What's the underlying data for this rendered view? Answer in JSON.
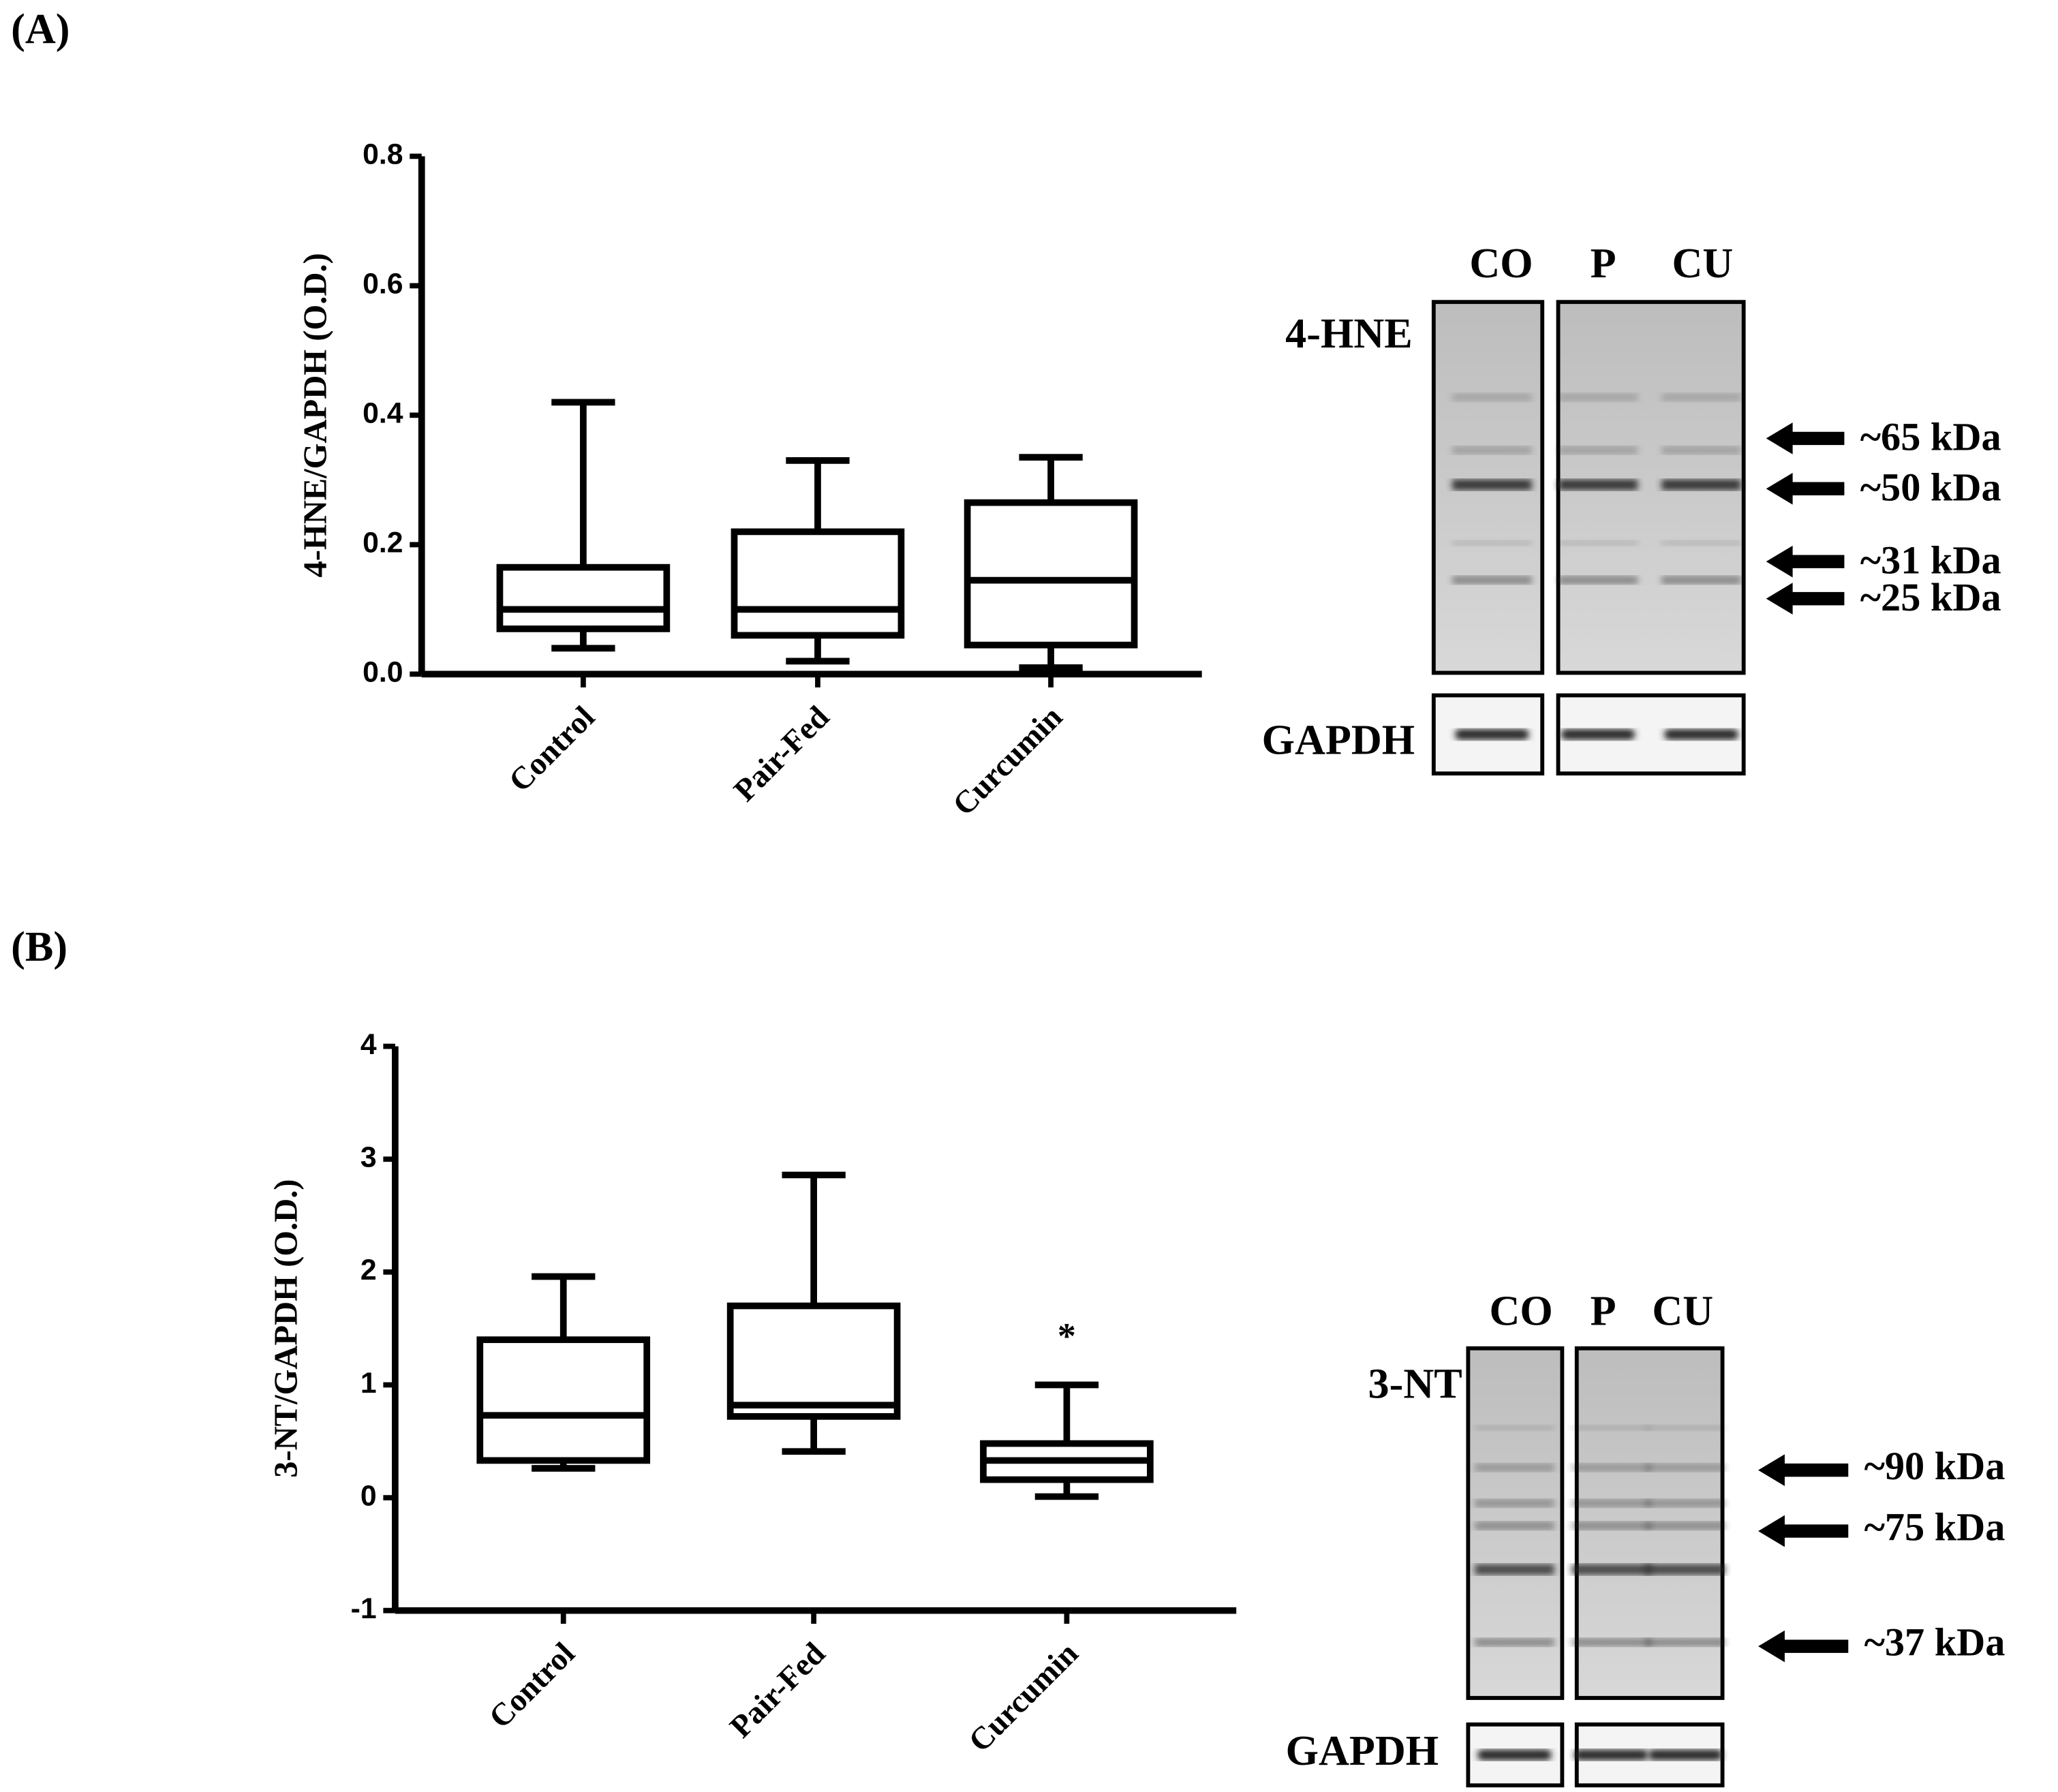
{
  "panel_labels": [
    "(A)",
    "(B)"
  ],
  "chart_data": [
    {
      "type": "box",
      "y_label": "4-HNE/GAPDH (O.D.)",
      "categories": [
        "Control",
        "Pair-Fed",
        "Curcumin"
      ],
      "min": [
        0.04,
        0.02,
        0.01
      ],
      "q1": [
        0.07,
        0.06,
        0.045
      ],
      "median": [
        0.1,
        0.1,
        0.145
      ],
      "q3": [
        0.165,
        0.22,
        0.265
      ],
      "max": [
        0.42,
        0.33,
        0.335
      ],
      "color": "#000000",
      "ylim": [
        0,
        0.8
      ],
      "yticks": [
        {
          "value": 0,
          "label": "0.0"
        },
        0.2,
        0.4,
        0.6,
        0.8
      ]
    },
    {
      "type": "box",
      "y_label": "3-NT/GAPDH (O.D.)",
      "categories": [
        "Control",
        "Pair-Fed",
        "Curcumin"
      ],
      "min": [
        0.26,
        0.41,
        0.01
      ],
      "q1": [
        0.33,
        0.72,
        0.16
      ],
      "median": [
        0.73,
        0.82,
        0.33
      ],
      "q3": [
        1.4,
        1.7,
        0.48
      ],
      "max": [
        1.96,
        2.86,
        1.0
      ],
      "color": "#000000",
      "annotation": "*",
      "ylim": [
        -1,
        4
      ],
      "yticks": [
        -1,
        0,
        1,
        2,
        3,
        4
      ]
    }
  ],
  "blots": [
    {
      "protein": "4-HNE",
      "lanes": [
        "CO",
        "P",
        "CU"
      ],
      "loading": "GAPDH",
      "markers": [
        "~65 kDa",
        "~50 kDa",
        "~31 kDa",
        "~25 kDa"
      ]
    },
    {
      "protein": "3-NT",
      "lanes": [
        "CO",
        "P",
        "CU"
      ],
      "loading": "GAPDH",
      "markers": [
        "~90 kDa",
        "~75 kDa",
        "~37 kDa"
      ]
    }
  ]
}
